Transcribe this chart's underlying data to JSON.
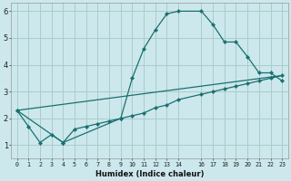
{
  "xlabel": "Humidex (Indice chaleur)",
  "bg_color": "#cce8ec",
  "grid_color": "#aacccc",
  "line_color": "#1a7070",
  "ylim": [
    0.5,
    6.3
  ],
  "xlim": [
    -0.5,
    23.5
  ],
  "yticks": [
    1,
    2,
    3,
    4,
    5,
    6
  ],
  "xticks": [
    0,
    1,
    2,
    3,
    4,
    5,
    6,
    7,
    8,
    9,
    10,
    11,
    12,
    13,
    14,
    16,
    17,
    18,
    19,
    20,
    21,
    22,
    23
  ],
  "xtick_labels": [
    "0",
    "1",
    "2",
    "3",
    "4",
    "5",
    "6",
    "7",
    "8",
    "9",
    "10",
    "11",
    "12",
    "13",
    "14",
    "16",
    "17",
    "18",
    "19",
    "20",
    "21",
    "22",
    "23"
  ],
  "line1_x": [
    0,
    1,
    2,
    3,
    4,
    5,
    6,
    7,
    8,
    9,
    10,
    11,
    12,
    13,
    14,
    16,
    17,
    18,
    19,
    20,
    21,
    22,
    23
  ],
  "line1_y": [
    2.3,
    1.7,
    1.1,
    1.4,
    1.1,
    1.6,
    1.7,
    1.8,
    1.9,
    2.0,
    3.5,
    4.6,
    5.3,
    5.9,
    6.0,
    6.0,
    5.5,
    4.85,
    4.85,
    4.3,
    3.7,
    3.7,
    3.4
  ],
  "line2_x": [
    0,
    4,
    9,
    10,
    11,
    12,
    13,
    14,
    16,
    17,
    18,
    19,
    20,
    21,
    22,
    23
  ],
  "line2_y": [
    2.3,
    1.1,
    2.0,
    2.1,
    2.2,
    2.4,
    2.5,
    2.7,
    2.9,
    3.0,
    3.1,
    3.2,
    3.3,
    3.4,
    3.5,
    3.6
  ],
  "line3_x": [
    0,
    23
  ],
  "line3_y": [
    2.3,
    3.6
  ]
}
